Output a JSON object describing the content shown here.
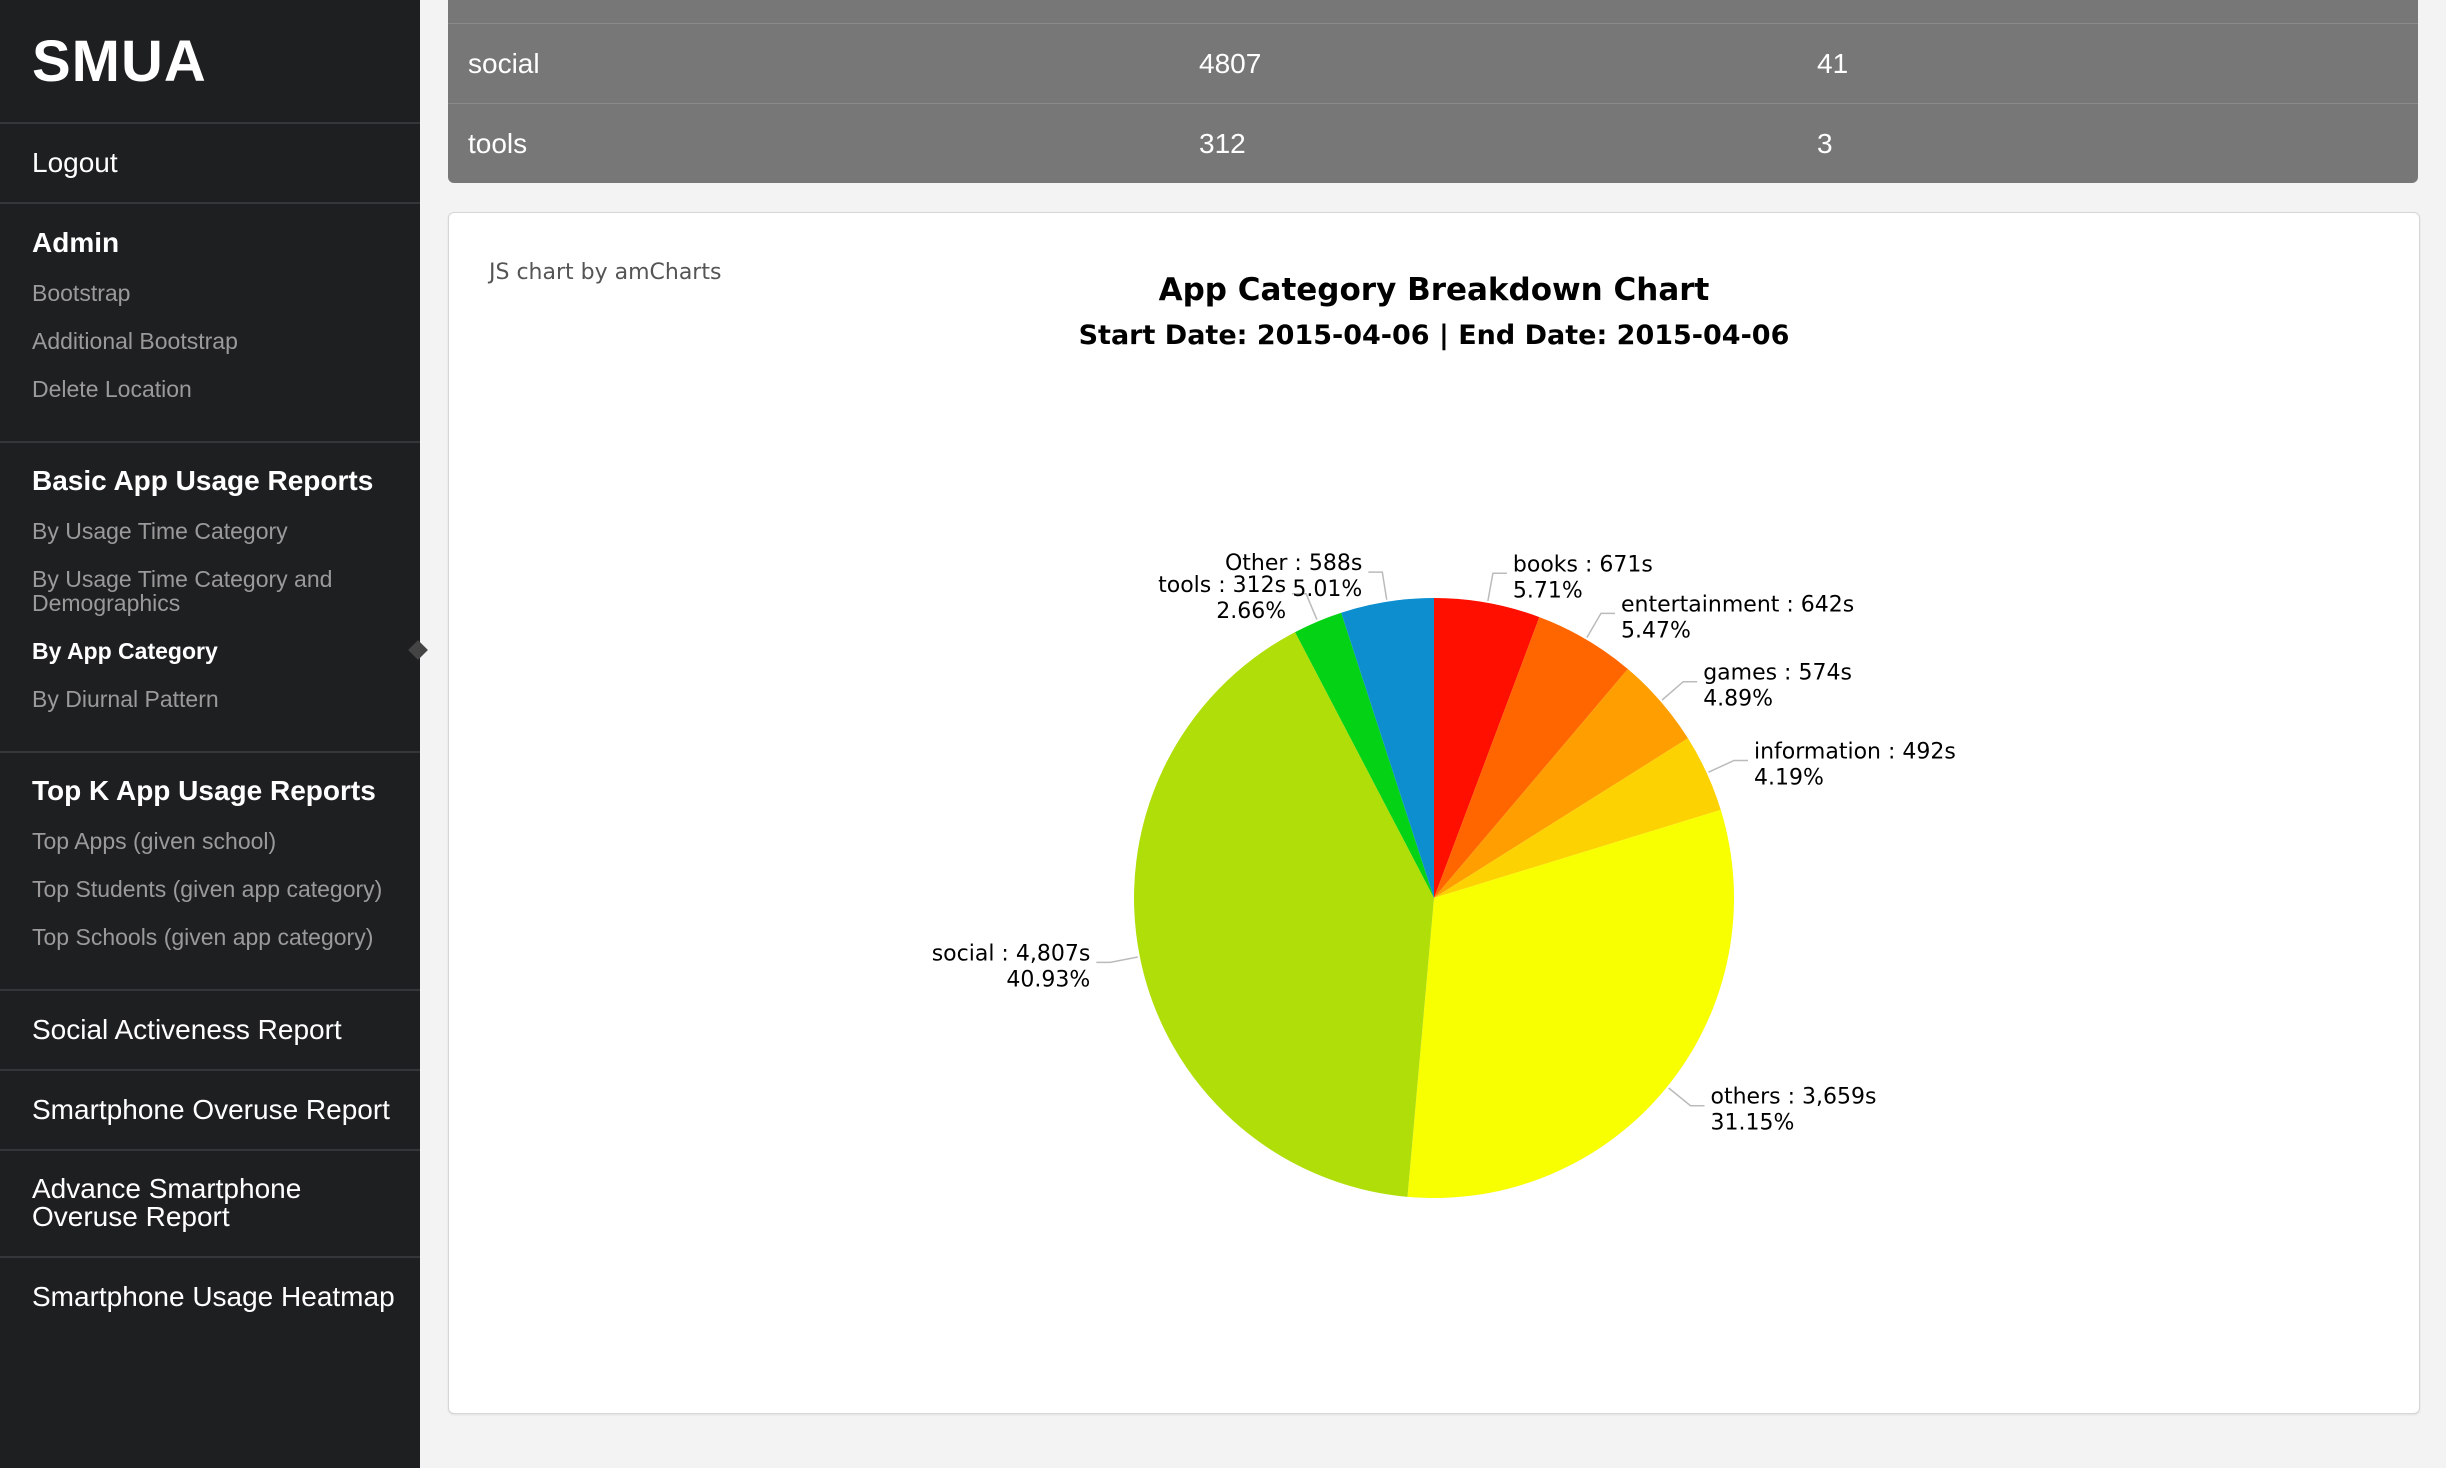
{
  "sidebar": {
    "brand": "SMUA",
    "logout": "Logout",
    "admin": {
      "heading": "Admin",
      "items": [
        "Bootstrap",
        "Additional Bootstrap",
        "Delete Location"
      ]
    },
    "basic": {
      "heading": "Basic App Usage Reports",
      "items": [
        "By Usage Time Category",
        "By Usage Time Category and",
        "Demographics",
        "By App Category",
        "By Diurnal Pattern"
      ]
    },
    "topk": {
      "heading": "Top K App Usage Reports",
      "items": [
        "Top Apps (given school)",
        "Top Students (given app category)",
        "Top Schools (given app category)"
      ]
    },
    "social": "Social Activeness Report",
    "overuse": "Smartphone Overuse Report",
    "advance": [
      "Advance Smartphone",
      "Overuse Report"
    ],
    "heatmap": "Smartphone Usage Heatmap"
  },
  "table": {
    "rows": [
      [
        "social",
        "4807",
        "41"
      ],
      [
        "tools",
        "312",
        "3"
      ]
    ]
  },
  "chart_data": {
    "type": "pie",
    "credit": "JS chart by amCharts",
    "title": "App Category Breakdown Chart",
    "subtitle": "Start Date: 2015-04-06 | End Date: 2015-04-06",
    "unit": "s",
    "slices": [
      {
        "category": "books",
        "value": 671,
        "value_label": "671s",
        "percent": "5.71%",
        "color": "#ff0f00"
      },
      {
        "category": "entertainment",
        "value": 642,
        "value_label": "642s",
        "percent": "5.47%",
        "color": "#ff6600"
      },
      {
        "category": "games",
        "value": 574,
        "value_label": "574s",
        "percent": "4.89%",
        "color": "#ff9e01"
      },
      {
        "category": "information",
        "value": 492,
        "value_label": "492s",
        "percent": "4.19%",
        "color": "#fcd202"
      },
      {
        "category": "others",
        "value": 3659,
        "value_label": "3,659s",
        "percent": "31.15%",
        "color": "#f8ff01"
      },
      {
        "category": "social",
        "value": 4807,
        "value_label": "4,807s",
        "percent": "40.93%",
        "color": "#b0de09"
      },
      {
        "category": "tools",
        "value": 312,
        "value_label": "312s",
        "percent": "2.66%",
        "color": "#04d215"
      },
      {
        "category": "Other",
        "value": 588,
        "value_label": "588s",
        "percent": "5.01%",
        "color": "#0d8ecf"
      }
    ]
  }
}
